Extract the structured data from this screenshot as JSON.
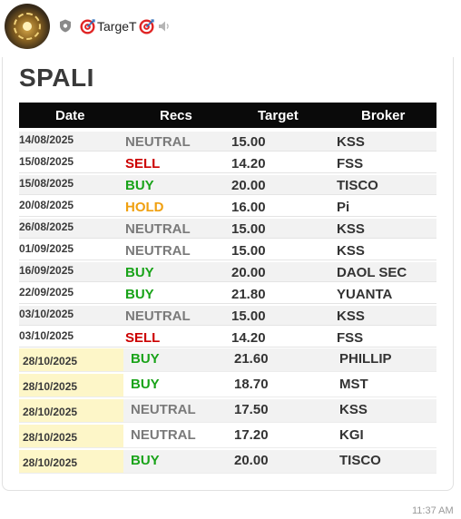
{
  "header": {
    "channel_name": "TargeT",
    "icons": [
      "avatar",
      "shield-icon",
      "target-icon",
      "target-icon",
      "mute-icon"
    ]
  },
  "message": {
    "stock": "SPALI",
    "timestamp": "11:37 AM"
  },
  "table": {
    "headers": [
      "Date",
      "Recs",
      "Target",
      "Broker"
    ],
    "rows": [
      {
        "date": "14/08/2025",
        "rec": "NEUTRAL",
        "target": "15.00",
        "broker": "KSS"
      },
      {
        "date": "15/08/2025",
        "rec": "SELL",
        "target": "14.20",
        "broker": "FSS"
      },
      {
        "date": "15/08/2025",
        "rec": "BUY",
        "target": "20.00",
        "broker": "TISCO"
      },
      {
        "date": "20/08/2025",
        "rec": "HOLD",
        "target": "16.00",
        "broker": "Pi"
      },
      {
        "date": "26/08/2025",
        "rec": "NEUTRAL",
        "target": "15.00",
        "broker": "KSS"
      },
      {
        "date": "01/09/2025",
        "rec": "NEUTRAL",
        "target": "15.00",
        "broker": "KSS"
      },
      {
        "date": "16/09/2025",
        "rec": "BUY",
        "target": "20.00",
        "broker": "DAOL SEC"
      },
      {
        "date": "22/09/2025",
        "rec": "BUY",
        "target": "21.80",
        "broker": "YUANTA"
      },
      {
        "date": "03/10/2025",
        "rec": "NEUTRAL",
        "target": "15.00",
        "broker": "KSS"
      },
      {
        "date": "03/10/2025",
        "rec": "SELL",
        "target": "14.20",
        "broker": "FSS"
      },
      {
        "date": "28/10/2025",
        "rec": "BUY",
        "target": "21.60",
        "broker": "PHILLIP"
      },
      {
        "date": "28/10/2025",
        "rec": "BUY",
        "target": "18.70",
        "broker": "MST"
      },
      {
        "date": "28/10/2025",
        "rec": "NEUTRAL",
        "target": "17.50",
        "broker": "KSS"
      },
      {
        "date": "28/10/2025",
        "rec": "NEUTRAL",
        "target": "17.20",
        "broker": "KGI"
      },
      {
        "date": "28/10/2025",
        "rec": "BUY",
        "target": "20.00",
        "broker": "TISCO"
      }
    ]
  },
  "colors": {
    "NEUTRAL": "#7a7a7a",
    "SELL": "#cc0000",
    "BUY": "#19a319",
    "HOLD": "#f0a010",
    "highlight": "#fdf6c8"
  }
}
